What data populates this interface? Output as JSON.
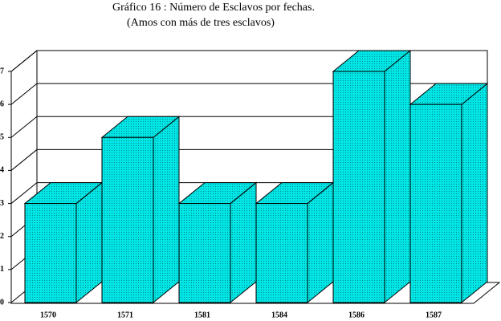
{
  "chart_data": {
    "type": "bar3d",
    "title": "Gráfico 16 : Número de Esclavos por fechas.",
    "subtitle": "(Amos con más de tres esclavos)",
    "categories": [
      "1570",
      "1571",
      "1581",
      "1584",
      "1586",
      "1587"
    ],
    "values": [
      3,
      5,
      3,
      3,
      7,
      6
    ],
    "color": "#00e5e5",
    "ylim": [
      0,
      7
    ],
    "yticks": [
      0,
      1,
      2,
      3,
      4,
      5,
      6,
      7
    ],
    "grid": true
  }
}
